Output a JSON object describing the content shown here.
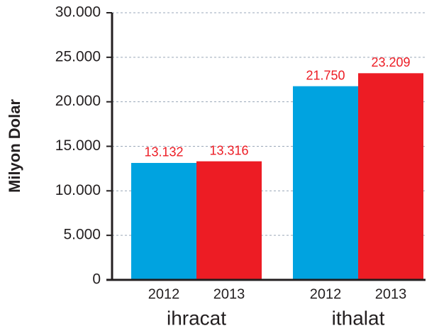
{
  "chart_data": {
    "type": "bar",
    "y_label": "Milyon Dolar",
    "categories": [
      "ihracat",
      "ithalat"
    ],
    "series": [
      {
        "name": "2012",
        "color": "#00a3e0",
        "values": [
          13132,
          21750
        ],
        "value_labels": [
          "13.132",
          "21.750"
        ]
      },
      {
        "name": "2013",
        "color": "#ed1c24",
        "values": [
          13316,
          23209
        ],
        "value_labels": [
          "13.316",
          "23.209"
        ]
      }
    ],
    "ylim": [
      0,
      30000
    ],
    "yticks": [
      0,
      {
        "value": 5000,
        "label": "5.000"
      },
      {
        "value": 10000,
        "label": "10.000"
      },
      {
        "value": 15000,
        "label": "15.000"
      },
      {
        "value": 20000,
        "label": "20.000"
      },
      {
        "value": 25000,
        "label": "25.000"
      },
      {
        "value": 30000,
        "label": "30.000"
      }
    ],
    "grid": true
  }
}
